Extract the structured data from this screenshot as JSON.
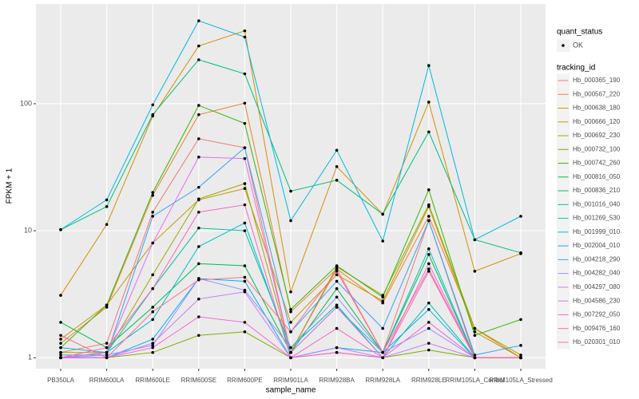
{
  "chart_data": {
    "type": "line",
    "x_label": "sample_name",
    "y_label": "FPKM + 1",
    "categories": [
      "PB350LA",
      "RRIM600LA",
      "RRIM600LE",
      "RRIM600SE",
      "RRIM600PE",
      "RRIM901LA",
      "RRIM928BA",
      "RRIM928LA",
      "RRIM928LE",
      "RRIM105LA_Control",
      "RRIM105LA_Stressed"
    ],
    "log_scale": "y",
    "ylim": [
      0.82,
      610
    ],
    "yticks": [
      1,
      10,
      100
    ],
    "grid": true,
    "point_legend": {
      "title": "quant_status",
      "label": "OK",
      "color": "#000000"
    },
    "legend_title": "tracking_id",
    "series": [
      {
        "name": "Hb_000365_190",
        "color": "#F8766D",
        "values": [
          1.1,
          1.3,
          14,
          53,
          45,
          1.1,
          5.0,
          1.1,
          12,
          1.0,
          1.0
        ]
      },
      {
        "name": "Hb_000567_220",
        "color": "#EA8331",
        "values": [
          1.3,
          2.5,
          19,
          82,
          101,
          2.3,
          5.0,
          2.7,
          13,
          1.7,
          1.0
        ]
      },
      {
        "name": "Hb_000638_180",
        "color": "#D89000",
        "values": [
          3.1,
          11.2,
          80,
          285,
          375,
          3.3,
          32,
          13.5,
          103,
          4.8,
          6.6
        ]
      },
      {
        "name": "Hb_000666_120",
        "color": "#C09B00",
        "values": [
          1.4,
          2.6,
          8,
          17.5,
          21.5,
          1.9,
          4.5,
          2.8,
          15.5,
          1.6,
          1.0
        ]
      },
      {
        "name": "Hb_000692_230",
        "color": "#A3A500",
        "values": [
          1.1,
          1.1,
          4.5,
          17.8,
          23.5,
          1.1,
          5.2,
          3.1,
          16,
          1.7,
          1.05
        ]
      },
      {
        "name": "Hb_000732_100",
        "color": "#7CAE00",
        "values": [
          1.0,
          1.0,
          1.1,
          1.5,
          1.6,
          1.0,
          1.1,
          1.0,
          1.15,
          1.0,
          1.0
        ]
      },
      {
        "name": "Hb_000742_260",
        "color": "#39B600",
        "values": [
          1.2,
          2.6,
          20,
          97,
          70,
          2.4,
          5.3,
          3.0,
          21,
          1.5,
          2.0
        ]
      },
      {
        "name": "Hb_000816_050",
        "color": "#00BB4E",
        "values": [
          1.9,
          1.2,
          2.5,
          5.5,
          5.3,
          1.1,
          3.5,
          1.1,
          6.5,
          1.0,
          1.0
        ]
      },
      {
        "name": "Hb_000836_210",
        "color": "#00BF7D",
        "values": [
          10.2,
          15.5,
          82,
          222,
          172,
          20.5,
          25,
          13.5,
          60,
          8.5,
          6.7
        ]
      },
      {
        "name": "Hb_001016_040",
        "color": "#00C1A3",
        "values": [
          1.0,
          1.1,
          3.5,
          10.5,
          10.0,
          1.2,
          2.6,
          1.0,
          2.7,
          1.0,
          1.0
        ]
      },
      {
        "name": "Hb_001269_530",
        "color": "#00BFC4",
        "values": [
          1.2,
          1.1,
          2.0,
          7.5,
          11.5,
          1.1,
          2.5,
          1.1,
          7.2,
          1.0,
          1.0
        ]
      },
      {
        "name": "Hb_001999_010",
        "color": "#00BAE0",
        "values": [
          10.2,
          17.5,
          98,
          450,
          335,
          12,
          43,
          8.3,
          200,
          8.5,
          13
        ]
      },
      {
        "name": "Hb_002004_010",
        "color": "#00B0F6",
        "values": [
          1.0,
          1.0,
          1.4,
          4.2,
          4.0,
          1.0,
          1.2,
          1.1,
          2.4,
          1.0,
          1.0
        ]
      },
      {
        "name": "Hb_004218_290",
        "color": "#35A2FF",
        "values": [
          1.05,
          1.05,
          13,
          22,
          45,
          1.6,
          4.0,
          1.7,
          12,
          1.05,
          1.25
        ]
      },
      {
        "name": "Hb_004282_040",
        "color": "#9590FF",
        "values": [
          1.0,
          1.05,
          1.25,
          4.2,
          3.4,
          1.2,
          3.0,
          1.1,
          1.7,
          1.0,
          1.0
        ]
      },
      {
        "name": "Hb_004297_080",
        "color": "#C77CFF",
        "values": [
          1.0,
          1.0,
          1.3,
          2.9,
          3.3,
          1.0,
          1.2,
          1.0,
          1.3,
          1.0,
          1.0
        ]
      },
      {
        "name": "Hb_004586_230",
        "color": "#E76BF3",
        "values": [
          1.0,
          1.1,
          8,
          38,
          37,
          1.1,
          2.5,
          1.0,
          5.5,
          1.0,
          1.0
        ]
      },
      {
        "name": "Hb_007292_050",
        "color": "#FA62DB",
        "values": [
          1.0,
          1.0,
          1.2,
          2.1,
          1.9,
          1.0,
          1.1,
          1.0,
          1.9,
          1.0,
          1.0
        ]
      },
      {
        "name": "Hb_009476_160",
        "color": "#FF62BC",
        "values": [
          1.0,
          1.2,
          3.5,
          14,
          16,
          1.0,
          1.7,
          1.0,
          4.8,
          1.0,
          1.0
        ]
      },
      {
        "name": "Hb_020301_010",
        "color": "#FF6C90",
        "values": [
          1.5,
          1.0,
          2.3,
          4.1,
          4.3,
          1.6,
          4.8,
          1.1,
          5.0,
          1.0,
          1.0
        ]
      }
    ]
  }
}
